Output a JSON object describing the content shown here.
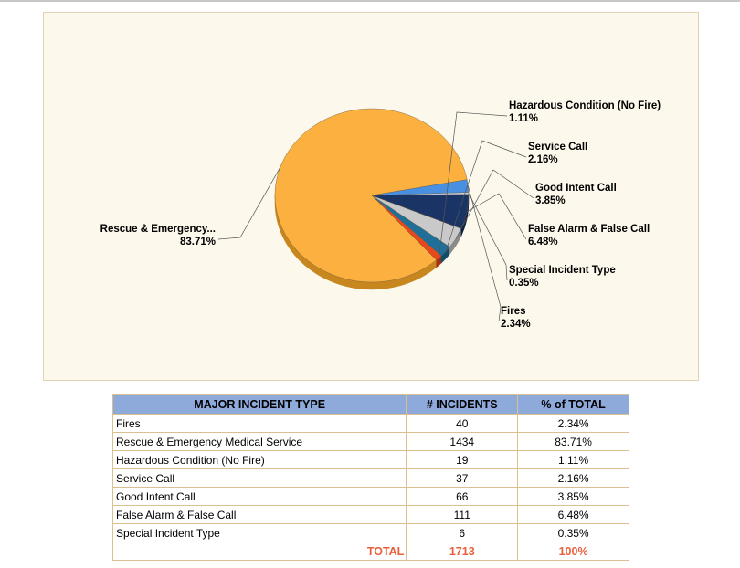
{
  "chart_data": {
    "type": "pie",
    "title": "",
    "slices": [
      {
        "label": "Rescue & Emergency...",
        "value": 83.71,
        "pct_label": "83.71%",
        "color": "#fbb040",
        "side_color": "#c8861e"
      },
      {
        "label": "Hazardous Condition (No Fire)",
        "value": 1.11,
        "pct_label": "1.11%",
        "color": "#e8471c",
        "side_color": "#a82d0e"
      },
      {
        "label": "Service Call",
        "value": 2.16,
        "pct_label": "2.16%",
        "color": "#1f6f99",
        "side_color": "#124c6b"
      },
      {
        "label": "Good Intent Call",
        "value": 3.85,
        "pct_label": "3.85%",
        "color": "#c9c9c9",
        "side_color": "#8a8a8a"
      },
      {
        "label": "False Alarm & False Call",
        "value": 6.48,
        "pct_label": "6.48%",
        "color": "#1a3466",
        "side_color": "#0e1f40"
      },
      {
        "label": "Special Incident Type",
        "value": 0.35,
        "pct_label": "0.35%",
        "color": "#c8d8ee",
        "side_color": "#8ea4c4"
      },
      {
        "label": "Fires",
        "value": 2.34,
        "pct_label": "2.34%",
        "color": "#4a90e2",
        "side_color": "#2a63a8"
      }
    ]
  },
  "table": {
    "headers": [
      "MAJOR INCIDENT TYPE",
      "# INCIDENTS",
      "% of TOTAL"
    ],
    "rows": [
      {
        "type": "Fires",
        "count": "40",
        "pct": "2.34%"
      },
      {
        "type": "Rescue & Emergency Medical Service",
        "count": "1434",
        "pct": "83.71%"
      },
      {
        "type": "Hazardous Condition (No Fire)",
        "count": "19",
        "pct": "1.11%"
      },
      {
        "type": "Service Call",
        "count": "37",
        "pct": "2.16%"
      },
      {
        "type": "Good Intent Call",
        "count": "66",
        "pct": "3.85%"
      },
      {
        "type": "False Alarm & False Call",
        "count": "111",
        "pct": "6.48%"
      },
      {
        "type": "Special Incident Type",
        "count": "6",
        "pct": "0.35%"
      }
    ],
    "total": {
      "label": "TOTAL",
      "count": "1713",
      "pct": "100%"
    }
  }
}
